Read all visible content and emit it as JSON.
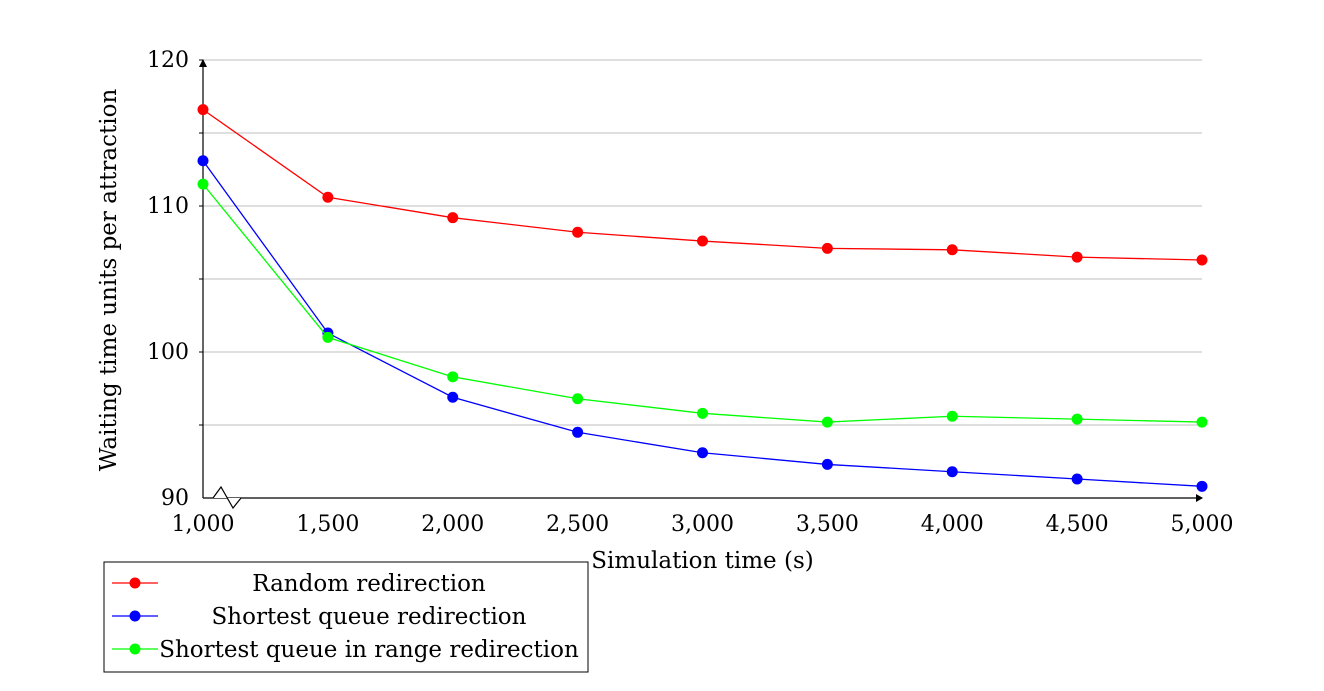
{
  "chart_data": {
    "type": "line",
    "xlabel": "Simulation time (s)",
    "ylabel": "Waiting time units per attraction",
    "x": [
      1000,
      1500,
      2000,
      2500,
      3000,
      3500,
      4000,
      4500,
      5000
    ],
    "x_tick_values": [
      1000,
      1500,
      2000,
      2500,
      3000,
      3500,
      4000,
      4500,
      5000
    ],
    "x_tick_labels": [
      "1,000",
      "1,500",
      "2,000",
      "2,500",
      "3,000",
      "3,500",
      "4,000",
      "4,500",
      "5,000"
    ],
    "y_tick_values": [
      90,
      100,
      110,
      120
    ],
    "y_tick_labels": [
      "90",
      "100",
      "110",
      "120"
    ],
    "xlim": [
      1000,
      5000
    ],
    "ylim": [
      90,
      120
    ],
    "grid": "horizontal",
    "legend_position": "below-left",
    "series": [
      {
        "name": "Random redirection",
        "color": "#ff0000",
        "values": [
          116.6,
          110.6,
          109.2,
          108.2,
          107.6,
          107.1,
          107.0,
          106.5,
          106.3
        ]
      },
      {
        "name": "Shortest queue redirection",
        "color": "#0000ff",
        "values": [
          113.1,
          101.3,
          96.9,
          94.5,
          93.1,
          92.3,
          91.8,
          91.3,
          90.8
        ]
      },
      {
        "name": "Shortest queue in range redirection",
        "color": "#00ff00",
        "values": [
          111.5,
          101.0,
          98.3,
          96.8,
          95.8,
          95.2,
          95.6,
          95.4,
          95.2
        ]
      }
    ]
  }
}
